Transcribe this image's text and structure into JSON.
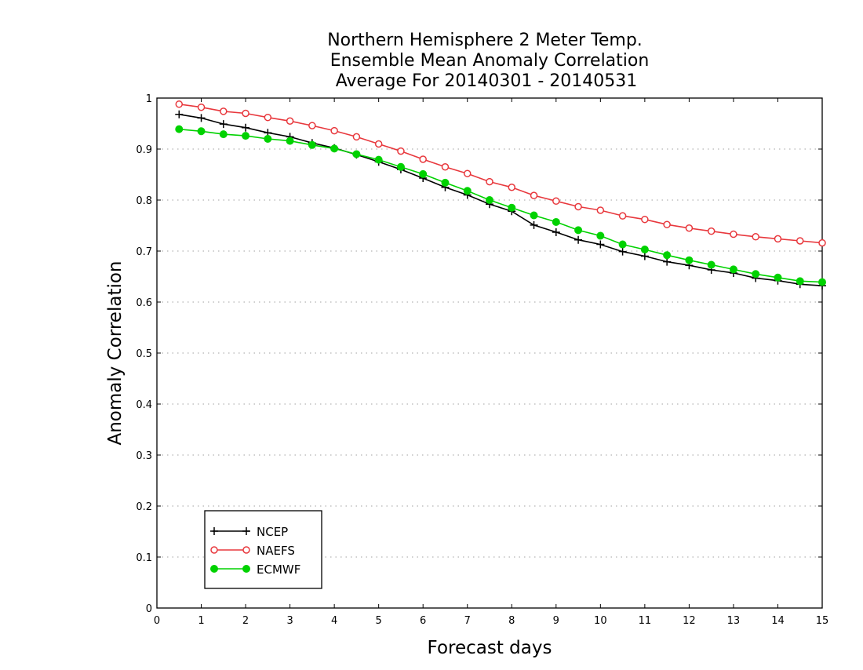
{
  "chart_data": {
    "type": "line",
    "title_lines": [
      "Northern Hemisphere 2 Meter Temp.",
      "Ensemble Mean Anomaly Correlation",
      "Average For 20140301 - 20140531"
    ],
    "xlabel": "Forecast days",
    "ylabel": "Anomaly Correlation",
    "xlim": [
      0,
      15
    ],
    "ylim": [
      0,
      1
    ],
    "x_ticks": [
      0,
      1,
      2,
      3,
      4,
      5,
      6,
      7,
      8,
      9,
      10,
      11,
      12,
      13,
      14,
      15
    ],
    "x_tick_labels": [
      "0",
      "1",
      "2",
      "3",
      "4",
      "5",
      "6",
      "7",
      "8",
      "9",
      "10",
      "11",
      "12",
      "13",
      "14",
      "15"
    ],
    "y_ticks": [
      0,
      0.1,
      0.2,
      0.3,
      0.4,
      0.5,
      0.6,
      0.7,
      0.8,
      0.9,
      1
    ],
    "y_tick_labels": [
      "0",
      "0.1",
      "0.2",
      "0.3",
      "0.4",
      "0.5",
      "0.6",
      "0.7",
      "0.8",
      "0.9",
      "1"
    ],
    "grid": "horizontal dotted",
    "legend_placement": "bottom-left",
    "x": [
      0.5,
      1,
      1.5,
      2,
      2.5,
      3,
      3.5,
      4,
      4.5,
      5,
      5.5,
      6,
      6.5,
      7,
      7.5,
      8,
      8.5,
      9,
      9.5,
      10,
      10.5,
      11,
      11.5,
      12,
      12.5,
      13,
      13.5,
      14,
      14.5,
      15
    ],
    "series": [
      {
        "name": "NCEP",
        "color": "#000000",
        "marker": "plus",
        "values": [
          0.968,
          0.961,
          0.949,
          0.942,
          0.932,
          0.924,
          0.912,
          0.902,
          0.889,
          0.875,
          0.86,
          0.843,
          0.825,
          0.81,
          0.792,
          0.778,
          0.751,
          0.737,
          0.722,
          0.713,
          0.699,
          0.69,
          0.679,
          0.672,
          0.663,
          0.657,
          0.647,
          0.642,
          0.635,
          0.632
        ]
      },
      {
        "name": "NAEFS",
        "color": "#e8383d",
        "marker": "open-circle",
        "values": [
          0.988,
          0.982,
          0.974,
          0.97,
          0.962,
          0.955,
          0.946,
          0.936,
          0.924,
          0.91,
          0.896,
          0.88,
          0.865,
          0.852,
          0.836,
          0.825,
          0.809,
          0.798,
          0.787,
          0.78,
          0.769,
          0.762,
          0.752,
          0.745,
          0.739,
          0.733,
          0.728,
          0.724,
          0.72,
          0.716
        ]
      },
      {
        "name": "ECMWF",
        "color": "#00d200",
        "marker": "filled-circle",
        "values": [
          0.939,
          0.935,
          0.929,
          0.926,
          0.92,
          0.916,
          0.908,
          0.901,
          0.89,
          0.879,
          0.865,
          0.851,
          0.834,
          0.818,
          0.8,
          0.785,
          0.77,
          0.757,
          0.741,
          0.73,
          0.713,
          0.703,
          0.692,
          0.682,
          0.673,
          0.664,
          0.655,
          0.648,
          0.641,
          0.639
        ]
      }
    ]
  }
}
